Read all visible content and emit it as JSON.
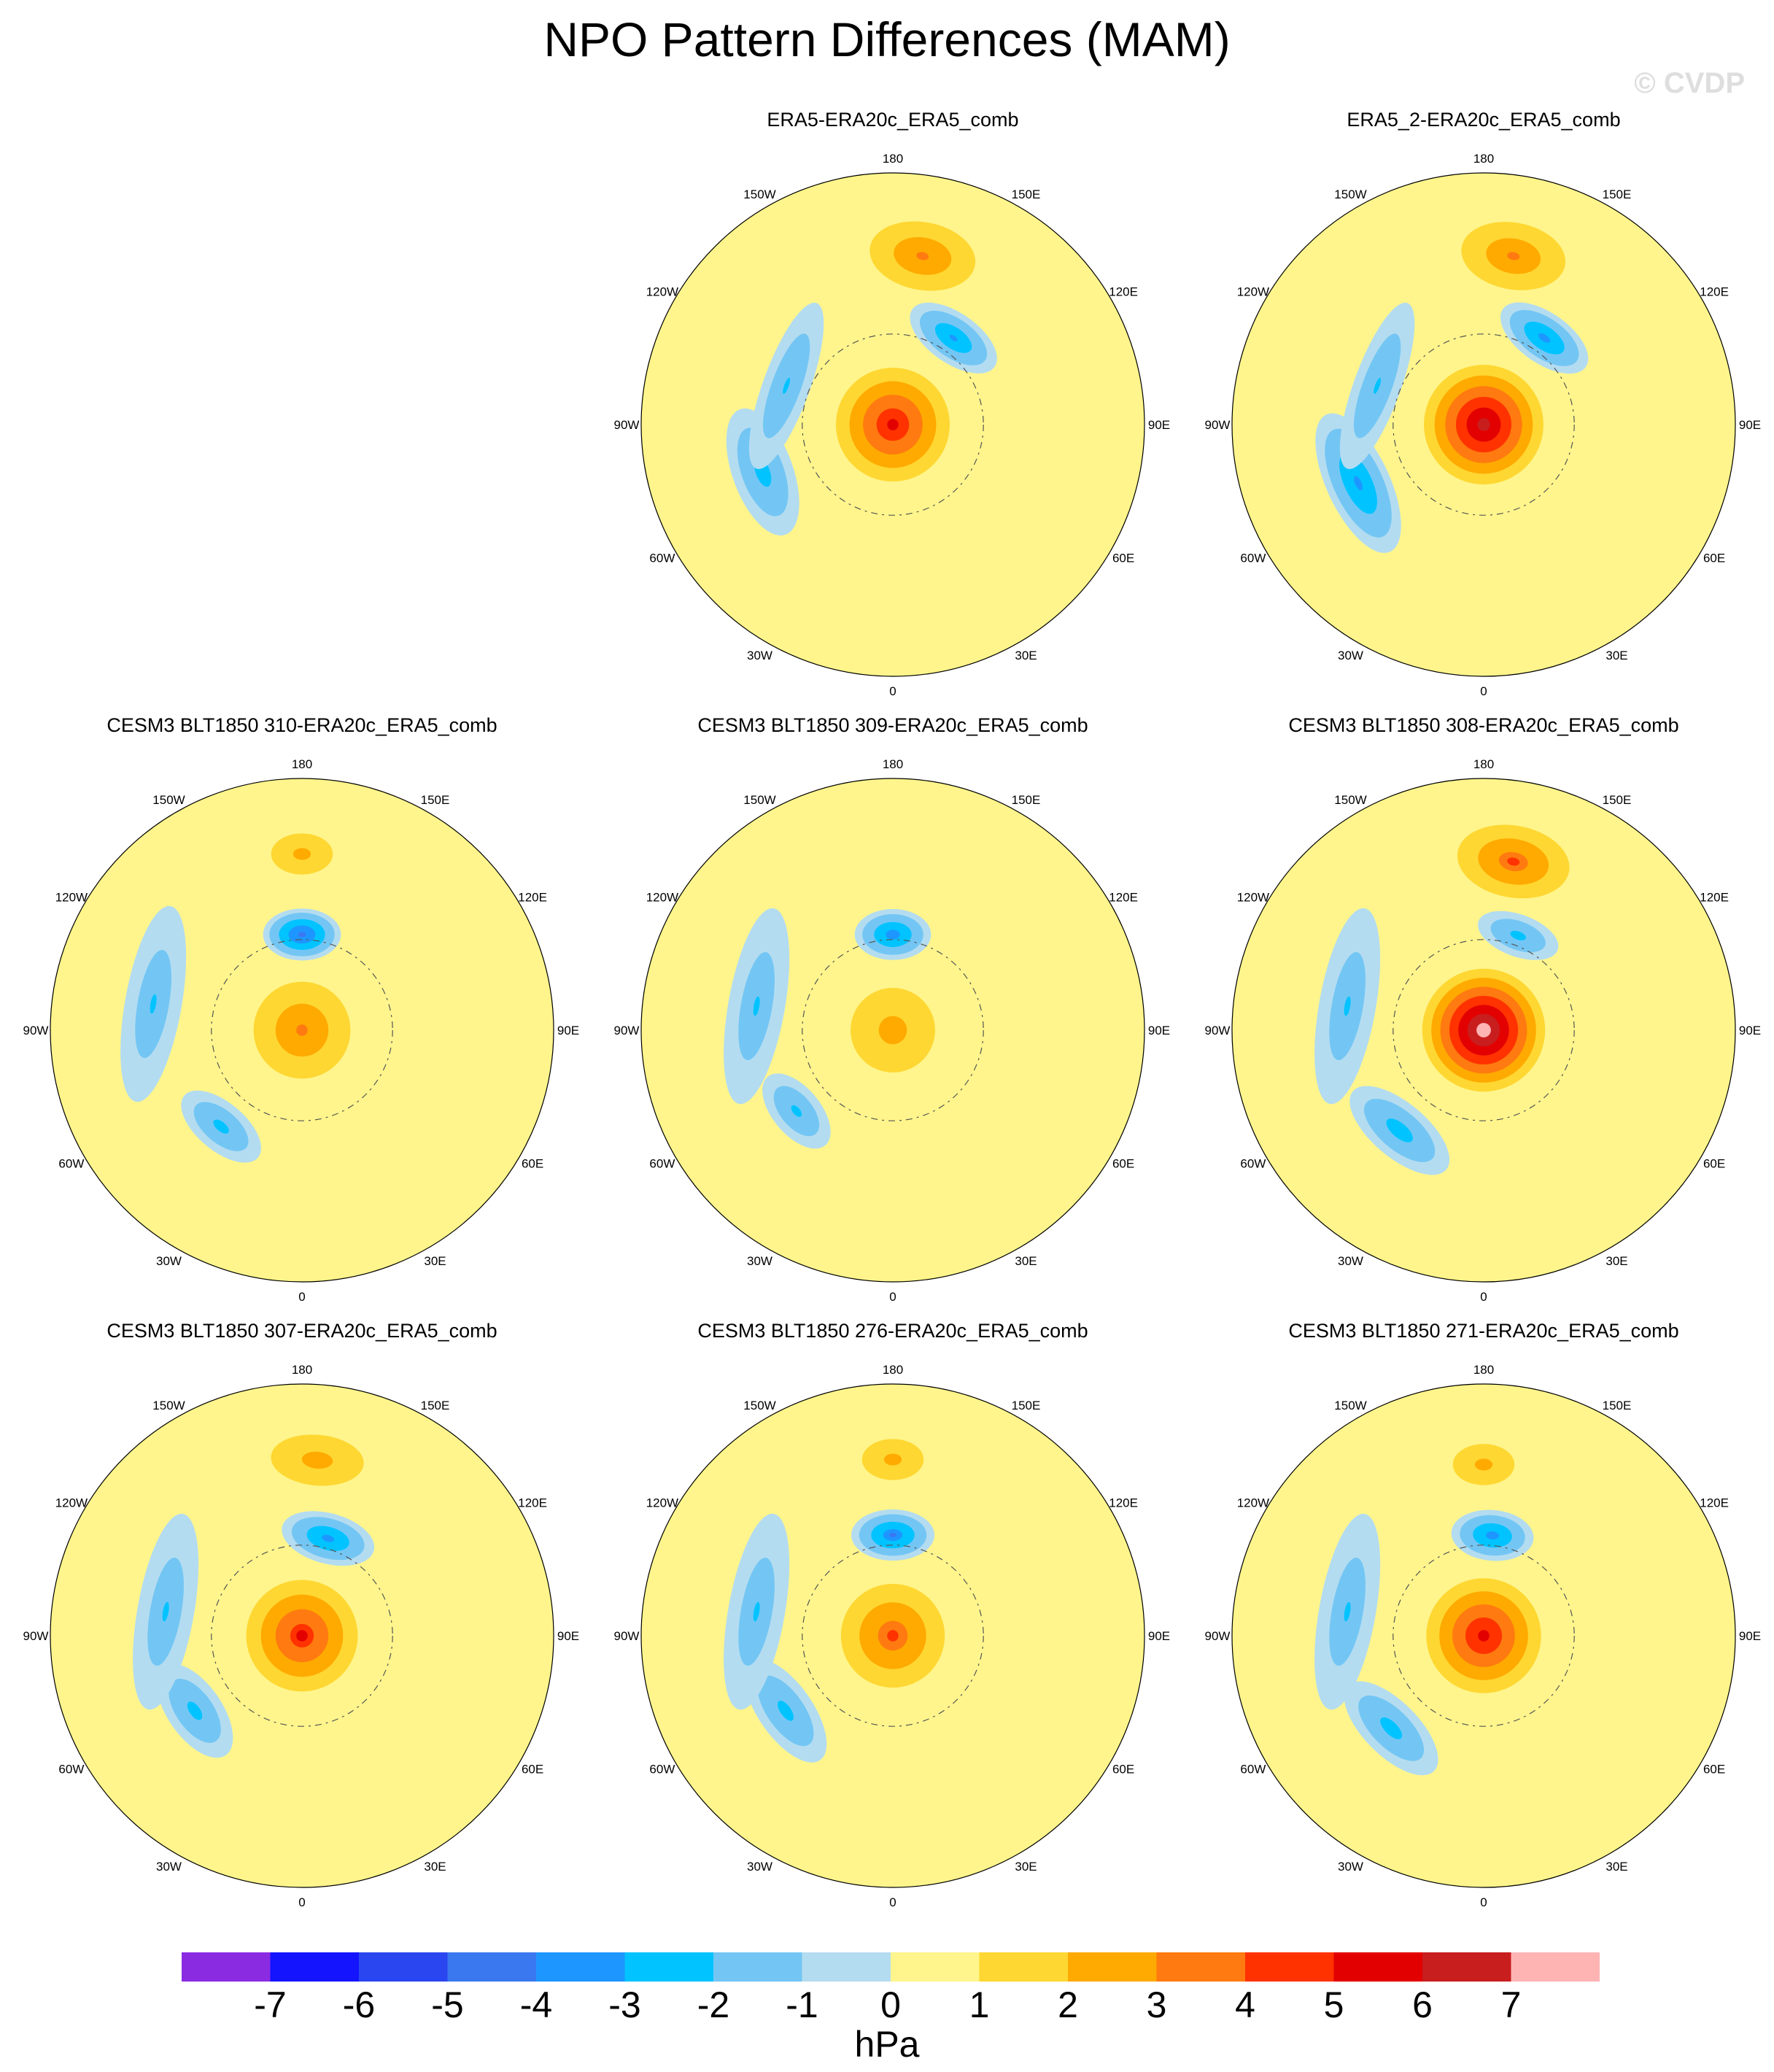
{
  "title": "NPO Pattern Differences (MAM)",
  "watermark": "© CVDP",
  "colorbar": {
    "unit": "hPa",
    "ticks": [
      "-7",
      "-6",
      "-5",
      "-4",
      "-3",
      "-2",
      "-1",
      "0",
      "1",
      "2",
      "3",
      "4",
      "5",
      "6",
      "7"
    ],
    "colors": [
      "#8a2be2",
      "#1414ff",
      "#2a46f0",
      "#3a78f0",
      "#1e96ff",
      "#00c3ff",
      "#73c6f4",
      "#b4dcf0",
      "#fff58c",
      "#ffd732",
      "#ffaa00",
      "#ff7a10",
      "#ff3200",
      "#e30000",
      "#c81e1e",
      "#ffb4b4"
    ]
  },
  "lon_labels": {
    "top": "180",
    "bottom": "0",
    "upper_left": "150W",
    "upper_right": "150E",
    "mid_upper_left": "120W",
    "mid_upper_right": "120E",
    "left": "90W",
    "right": "90E",
    "mid_lower_left": "60W",
    "mid_lower_right": "60E",
    "lower_left": "30W",
    "lower_right": "30E"
  },
  "panels": [
    {
      "id": "era5",
      "title": "ERA5-ERA20c_ERA5_comb",
      "features": [
        {
          "lon": 170,
          "r": 0.68,
          "sa": 0.22,
          "sb": 0.14,
          "value": 2.6
        },
        {
          "lon": 145,
          "r": 0.42,
          "sa": 0.16,
          "sb": 0.08,
          "value": -2.6
        },
        {
          "lon": 0,
          "r": 0.0,
          "sa": 0.2,
          "sb": 0.2,
          "value": 4.6
        },
        {
          "lon": -70,
          "r": 0.55,
          "sa": 0.22,
          "sb": 0.1,
          "value": -1.9
        },
        {
          "lon": -110,
          "r": 0.45,
          "sa": 0.3,
          "sb": 0.08,
          "value": -1.5
        }
      ]
    },
    {
      "id": "era5-2",
      "title": "ERA5_2-ERA20c_ERA5_comb",
      "features": [
        {
          "lon": 170,
          "r": 0.68,
          "sa": 0.22,
          "sb": 0.14,
          "value": 2.5
        },
        {
          "lon": 145,
          "r": 0.42,
          "sa": 0.16,
          "sb": 0.08,
          "value": -2.8
        },
        {
          "lon": 0,
          "r": 0.0,
          "sa": 0.2,
          "sb": 0.2,
          "value": 6.0
        },
        {
          "lon": -65,
          "r": 0.55,
          "sa": 0.24,
          "sb": 0.1,
          "value": -2.7
        },
        {
          "lon": -110,
          "r": 0.45,
          "sa": 0.3,
          "sb": 0.08,
          "value": -1.5
        }
      ]
    },
    {
      "id": "m310",
      "title": "CESM3 BLT1850 310-ERA20c_ERA5_comb",
      "features": [
        {
          "lon": 180,
          "r": 0.7,
          "sa": 0.15,
          "sb": 0.1,
          "value": 1.8
        },
        {
          "lon": 180,
          "r": 0.38,
          "sa": 0.12,
          "sb": 0.08,
          "value": -3.8
        },
        {
          "lon": 0,
          "r": 0.0,
          "sa": 0.2,
          "sb": 0.2,
          "value": 2.6
        },
        {
          "lon": -40,
          "r": 0.5,
          "sa": 0.16,
          "sb": 0.08,
          "value": -1.8
        },
        {
          "lon": -100,
          "r": 0.6,
          "sa": 0.35,
          "sb": 0.1,
          "value": -1.2
        }
      ]
    },
    {
      "id": "m309",
      "title": "CESM3 BLT1850 309-ERA20c_ERA5_comb",
      "features": [
        {
          "lon": 180,
          "r": 0.38,
          "sa": 0.12,
          "sb": 0.08,
          "value": -3.0
        },
        {
          "lon": 0,
          "r": 0.0,
          "sa": 0.2,
          "sb": 0.2,
          "value": 1.9
        },
        {
          "lon": -50,
          "r": 0.5,
          "sa": 0.15,
          "sb": 0.08,
          "value": -1.7
        },
        {
          "lon": -100,
          "r": 0.55,
          "sa": 0.35,
          "sb": 0.1,
          "value": -1.2
        }
      ]
    },
    {
      "id": "m308",
      "title": "CESM3 BLT1850 308-ERA20c_ERA5_comb",
      "features": [
        {
          "lon": 170,
          "r": 0.68,
          "sa": 0.22,
          "sb": 0.14,
          "value": 3.1
        },
        {
          "lon": 160,
          "r": 0.4,
          "sa": 0.14,
          "sb": 0.07,
          "value": -1.8
        },
        {
          "lon": 0,
          "r": 0.0,
          "sa": 0.2,
          "sb": 0.2,
          "value": 7.2
        },
        {
          "lon": -40,
          "r": 0.52,
          "sa": 0.2,
          "sb": 0.09,
          "value": -2.0
        },
        {
          "lon": -100,
          "r": 0.55,
          "sa": 0.35,
          "sb": 0.1,
          "value": -1.2
        }
      ]
    },
    {
      "id": "m307",
      "title": "CESM3 BLT1850 307-ERA20c_ERA5_comb",
      "features": [
        {
          "lon": 175,
          "r": 0.7,
          "sa": 0.22,
          "sb": 0.12,
          "value": 1.9
        },
        {
          "lon": 165,
          "r": 0.4,
          "sa": 0.15,
          "sb": 0.08,
          "value": -2.8
        },
        {
          "lon": 0,
          "r": 0.0,
          "sa": 0.2,
          "sb": 0.2,
          "value": 4.2
        },
        {
          "lon": -55,
          "r": 0.52,
          "sa": 0.18,
          "sb": 0.09,
          "value": -1.8
        },
        {
          "lon": -100,
          "r": 0.55,
          "sa": 0.35,
          "sb": 0.1,
          "value": -1.2
        }
      ]
    },
    {
      "id": "m276",
      "title": "CESM3 BLT1850 276-ERA20c_ERA5_comb",
      "features": [
        {
          "lon": 180,
          "r": 0.7,
          "sa": 0.15,
          "sb": 0.1,
          "value": 1.8
        },
        {
          "lon": 180,
          "r": 0.4,
          "sa": 0.13,
          "sb": 0.08,
          "value": -3.2
        },
        {
          "lon": 0,
          "r": 0.0,
          "sa": 0.2,
          "sb": 0.2,
          "value": 3.2
        },
        {
          "lon": -55,
          "r": 0.52,
          "sa": 0.2,
          "sb": 0.09,
          "value": -1.8
        },
        {
          "lon": -100,
          "r": 0.55,
          "sa": 0.35,
          "sb": 0.1,
          "value": -1.2
        }
      ]
    },
    {
      "id": "m271",
      "title": "CESM3 BLT1850 271-ERA20c_ERA5_comb",
      "features": [
        {
          "lon": 180,
          "r": 0.68,
          "sa": 0.15,
          "sb": 0.1,
          "value": 1.8
        },
        {
          "lon": 175,
          "r": 0.4,
          "sa": 0.13,
          "sb": 0.08,
          "value": -2.9
        },
        {
          "lon": 0,
          "r": 0.0,
          "sa": 0.2,
          "sb": 0.2,
          "value": 4.8
        },
        {
          "lon": -45,
          "r": 0.52,
          "sa": 0.2,
          "sb": 0.09,
          "value": -1.9
        },
        {
          "lon": -100,
          "r": 0.55,
          "sa": 0.35,
          "sb": 0.1,
          "value": -1.2
        }
      ]
    }
  ]
}
